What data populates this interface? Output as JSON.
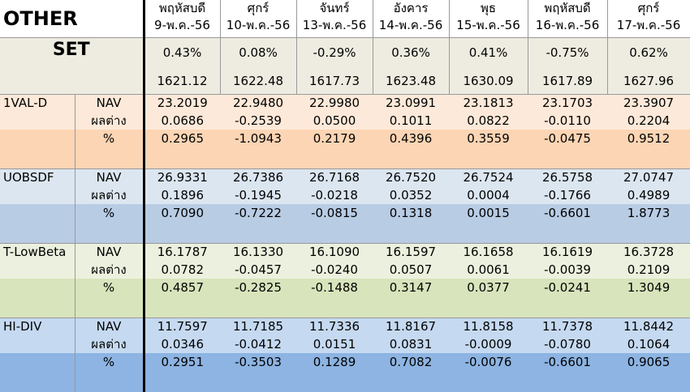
{
  "header": {
    "title": "OTHER",
    "days": [
      {
        "day": "พฤหัสบดี",
        "date": "9-พ.ค.-56"
      },
      {
        "day": "ศุกร์",
        "date": "10-พ.ค.-56"
      },
      {
        "day": "จันทร์",
        "date": "13-พ.ค.-56"
      },
      {
        "day": "อังคาร",
        "date": "14-พ.ค.-56"
      },
      {
        "day": "พุธ",
        "date": "15-พ.ค.-56"
      },
      {
        "day": "พฤหัสบดี",
        "date": "16-พ.ค.-56"
      },
      {
        "day": "ศุกร์",
        "date": "17-พ.ค.-56"
      }
    ]
  },
  "set": {
    "label": "SET",
    "pct": [
      "0.43%",
      "0.08%",
      "-0.29%",
      "0.36%",
      "0.41%",
      "-0.75%",
      "0.62%"
    ],
    "index": [
      "1621.12",
      "1622.48",
      "1617.73",
      "1623.48",
      "1630.09",
      "1617.89",
      "1627.96"
    ]
  },
  "row_labels": {
    "nav": "NAV",
    "diff": "ผลต่าง",
    "pct": "%"
  },
  "funds": [
    {
      "name": "1VAL-D",
      "colors": {
        "light": "#fde9d9",
        "dark": "#fcd5b4"
      },
      "nav": [
        "23.2019",
        "22.9480",
        "22.9980",
        "23.0991",
        "23.1813",
        "23.1703",
        "23.3907"
      ],
      "diff": [
        "0.0686",
        "-0.2539",
        "0.0500",
        "0.1011",
        "0.0822",
        "-0.0110",
        "0.2204"
      ],
      "pct": [
        "0.2965",
        "-1.0943",
        "0.2179",
        "0.4396",
        "0.3559",
        "-0.0475",
        "0.9512"
      ]
    },
    {
      "name": "UOBSDF",
      "colors": {
        "light": "#dce6f1",
        "dark": "#b8cce4"
      },
      "nav": [
        "26.9331",
        "26.7386",
        "26.7168",
        "26.7520",
        "26.7524",
        "26.5758",
        "27.0747"
      ],
      "diff": [
        "0.1896",
        "-0.1945",
        "-0.0218",
        "0.0352",
        "0.0004",
        "-0.1766",
        "0.4989"
      ],
      "pct": [
        "0.7090",
        "-0.7222",
        "-0.0815",
        "0.1318",
        "0.0015",
        "-0.6601",
        "1.8773"
      ]
    },
    {
      "name": "T-LowBeta",
      "colors": {
        "light": "#ebf1de",
        "dark": "#d8e4bc"
      },
      "nav": [
        "16.1787",
        "16.1330",
        "16.1090",
        "16.1597",
        "16.1658",
        "16.1619",
        "16.3728"
      ],
      "diff": [
        "0.0782",
        "-0.0457",
        "-0.0240",
        "0.0507",
        "0.0061",
        "-0.0039",
        "0.2109"
      ],
      "pct": [
        "0.4857",
        "-0.2825",
        "-0.1488",
        "0.3147",
        "0.0377",
        "-0.0241",
        "1.3049"
      ]
    },
    {
      "name": "HI-DIV",
      "colors": {
        "light": "#c5d9f1",
        "dark": "#8db4e2"
      },
      "nav": [
        "11.7597",
        "11.7185",
        "11.7336",
        "11.8167",
        "11.8158",
        "11.7378",
        "11.8442"
      ],
      "diff": [
        "0.0346",
        "-0.0412",
        "0.0151",
        "0.0831",
        "-0.0009",
        "-0.0780",
        "0.1064"
      ],
      "pct": [
        "0.2951",
        "-0.3503",
        "0.1289",
        "0.7082",
        "-0.0076",
        "-0.6601",
        "0.9065"
      ]
    }
  ]
}
